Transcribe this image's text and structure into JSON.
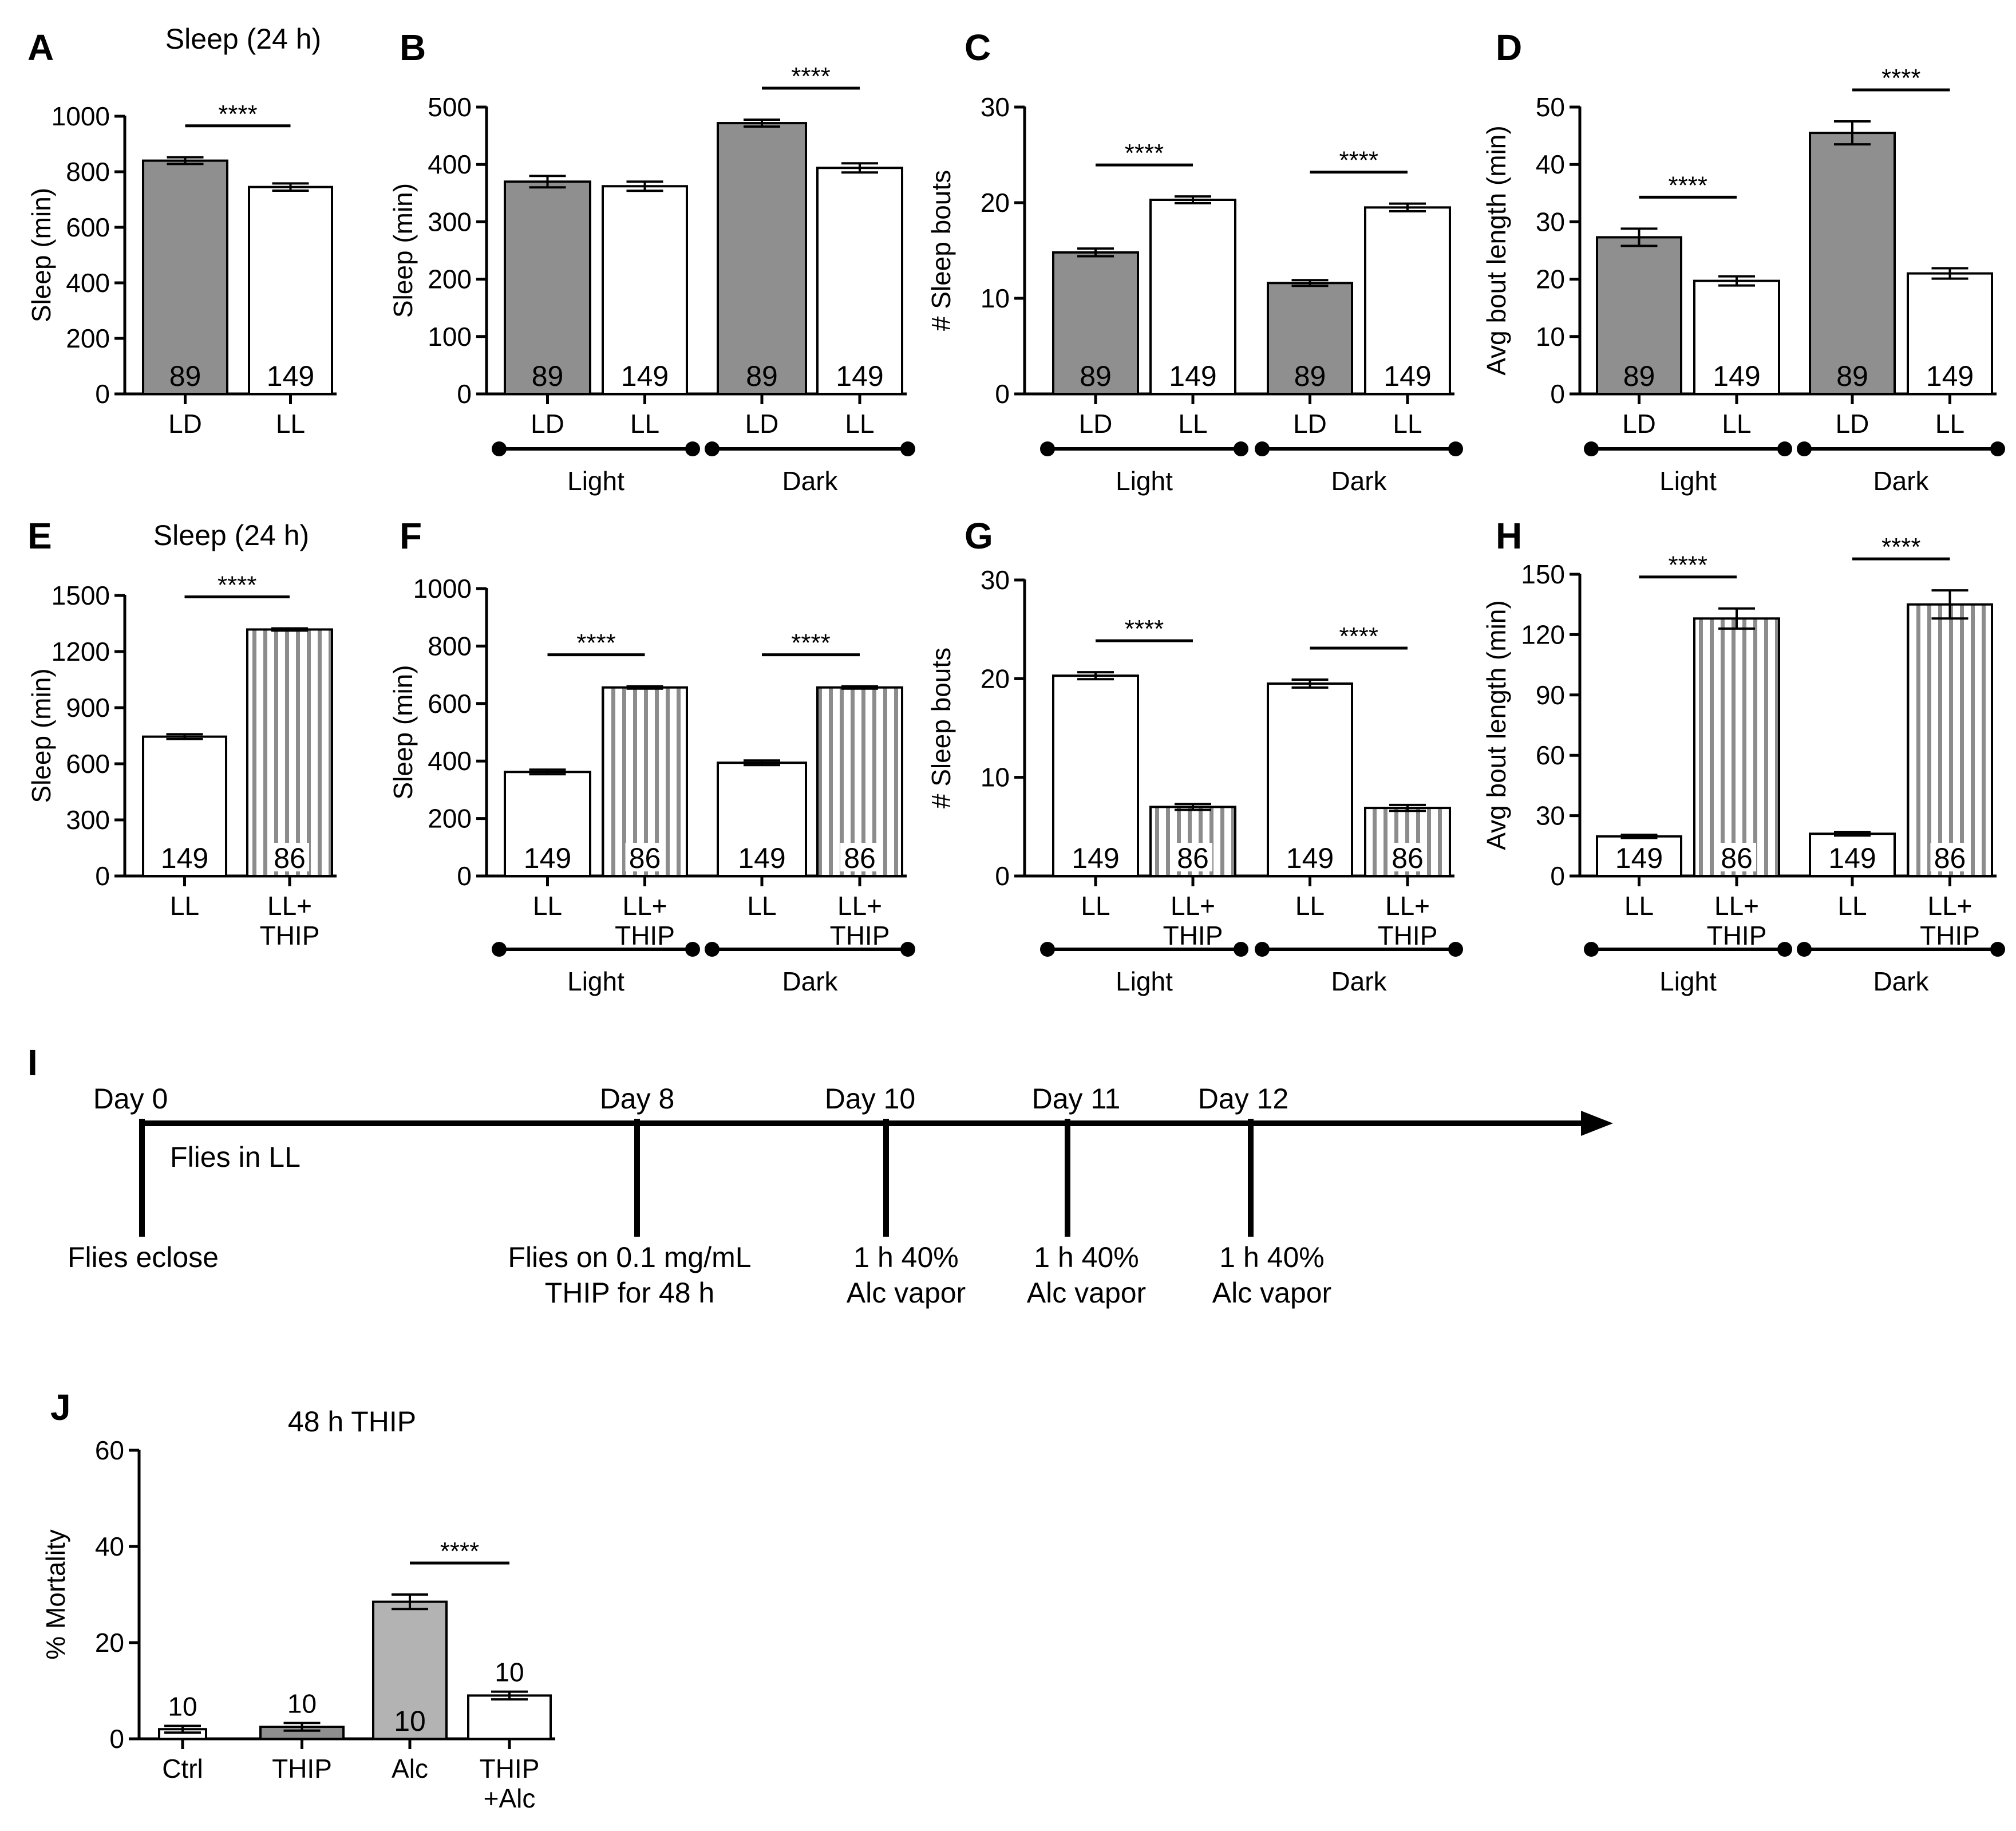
{
  "figure": {
    "colors": {
      "ld": "#8f8f8f",
      "ll": "#ffffff",
      "thip_stripe": "#8c8c8c",
      "alc": "#b3b3b3",
      "ink": "#000000",
      "alc_label": "#ffffff"
    }
  },
  "chart_data": [
    {
      "panel": "A",
      "type": "bar",
      "title": "Sleep (24 h)",
      "ylabel": "Sleep (min)",
      "ylim": [
        0,
        1000
      ],
      "yticks": [
        0,
        200,
        400,
        600,
        800,
        1000
      ],
      "grid": false,
      "categories": [
        "LD",
        "LL"
      ],
      "values": [
        840,
        745
      ],
      "errors": [
        12,
        13
      ],
      "fills": [
        "ld",
        "ll"
      ],
      "n": [
        "89",
        "149"
      ],
      "groups": [],
      "significance": [
        {
          "from": 0,
          "to": 1,
          "label": "****"
        }
      ]
    },
    {
      "panel": "B",
      "type": "bar",
      "title": "",
      "ylabel": "Sleep (min)",
      "ylim": [
        0,
        500
      ],
      "yticks": [
        0,
        100,
        200,
        300,
        400,
        500
      ],
      "grid": false,
      "categories": [
        "LD",
        "LL",
        "LD",
        "LL"
      ],
      "values": [
        370,
        362,
        472,
        394
      ],
      "errors": [
        10,
        8,
        6,
        8
      ],
      "fills": [
        "ld",
        "ll",
        "ld",
        "ll"
      ],
      "n": [
        "89",
        "149",
        "89",
        "149"
      ],
      "groups": [
        {
          "label": "Light",
          "from": 0,
          "to": 1
        },
        {
          "label": "Dark",
          "from": 2,
          "to": 3
        }
      ],
      "significance": [
        {
          "from": 2,
          "to": 3,
          "label": "****"
        }
      ]
    },
    {
      "panel": "C",
      "type": "bar",
      "title": "",
      "ylabel": "# Sleep bouts",
      "ylim": [
        0,
        30
      ],
      "yticks": [
        0,
        10,
        20,
        30
      ],
      "grid": false,
      "categories": [
        "LD",
        "LL",
        "LD",
        "LL"
      ],
      "values": [
        14.8,
        20.3,
        11.6,
        19.5
      ],
      "errors": [
        0.4,
        0.35,
        0.3,
        0.4
      ],
      "fills": [
        "ld",
        "ll",
        "ld",
        "ll"
      ],
      "n": [
        "89",
        "149",
        "89",
        "149"
      ],
      "groups": [
        {
          "label": "Light",
          "from": 0,
          "to": 1
        },
        {
          "label": "Dark",
          "from": 2,
          "to": 3
        }
      ],
      "significance": [
        {
          "from": 0,
          "to": 1,
          "label": "****"
        },
        {
          "from": 2,
          "to": 3,
          "label": "****"
        }
      ]
    },
    {
      "panel": "D",
      "type": "bar",
      "title": "",
      "ylabel": "Avg bout length (min)",
      "ylim": [
        0,
        50
      ],
      "yticks": [
        0,
        10,
        20,
        30,
        40,
        50
      ],
      "grid": false,
      "categories": [
        "LD",
        "LL",
        "LD",
        "LL"
      ],
      "values": [
        27.3,
        19.7,
        45.5,
        21
      ],
      "errors": [
        1.5,
        0.8,
        2.0,
        0.9
      ],
      "fills": [
        "ld",
        "ll",
        "ld",
        "ll"
      ],
      "n": [
        "89",
        "149",
        "89",
        "149"
      ],
      "groups": [
        {
          "label": "Light",
          "from": 0,
          "to": 1
        },
        {
          "label": "Dark",
          "from": 2,
          "to": 3
        }
      ],
      "significance": [
        {
          "from": 0,
          "to": 1,
          "label": "****"
        },
        {
          "from": 2,
          "to": 3,
          "label": "****"
        }
      ]
    },
    {
      "panel": "E",
      "type": "bar",
      "title": "Sleep (24 h)",
      "ylabel": "Sleep (min)",
      "ylim": [
        0,
        1500
      ],
      "yticks": [
        0,
        300,
        600,
        900,
        1200,
        1500
      ],
      "grid": false,
      "categories": [
        "LL",
        "LL+\nTHIP"
      ],
      "values": [
        745,
        1318
      ],
      "errors": [
        13,
        6
      ],
      "fills": [
        "ll",
        "thip"
      ],
      "n": [
        "149",
        "86"
      ],
      "groups": [],
      "significance": [
        {
          "from": 0,
          "to": 1,
          "label": "****"
        }
      ]
    },
    {
      "panel": "F",
      "type": "bar",
      "title": "",
      "ylabel": "Sleep (min)",
      "ylim": [
        0,
        1000
      ],
      "yticks": [
        0,
        200,
        400,
        600,
        800,
        1000
      ],
      "grid": false,
      "categories": [
        "LL",
        "LL+\nTHIP",
        "LL",
        "LL+\nTHIP"
      ],
      "values": [
        362,
        656,
        394,
        656
      ],
      "errors": [
        8,
        4,
        8,
        4
      ],
      "fills": [
        "ll",
        "thip",
        "ll",
        "thip"
      ],
      "n": [
        "149",
        "86",
        "149",
        "86"
      ],
      "groups": [
        {
          "label": "Light",
          "from": 0,
          "to": 1
        },
        {
          "label": "Dark",
          "from": 2,
          "to": 3
        }
      ],
      "significance": [
        {
          "from": 0,
          "to": 1,
          "label": "****"
        },
        {
          "from": 2,
          "to": 3,
          "label": "****"
        }
      ]
    },
    {
      "panel": "G",
      "type": "bar",
      "title": "",
      "ylabel": "# Sleep bouts",
      "ylim": [
        0,
        30
      ],
      "yticks": [
        0,
        10,
        20,
        30
      ],
      "grid": false,
      "categories": [
        "LL",
        "LL+\nTHIP",
        "LL",
        "LL+\nTHIP"
      ],
      "values": [
        20.3,
        7.0,
        19.5,
        6.9
      ],
      "errors": [
        0.35,
        0.3,
        0.4,
        0.3
      ],
      "fills": [
        "ll",
        "thip",
        "ll",
        "thip"
      ],
      "n": [
        "149",
        "86",
        "149",
        "86"
      ],
      "groups": [
        {
          "label": "Light",
          "from": 0,
          "to": 1
        },
        {
          "label": "Dark",
          "from": 2,
          "to": 3
        }
      ],
      "significance": [
        {
          "from": 0,
          "to": 1,
          "label": "****"
        },
        {
          "from": 2,
          "to": 3,
          "label": "****"
        }
      ]
    },
    {
      "panel": "H",
      "type": "bar",
      "title": "",
      "ylabel": "Avg bout length (min)",
      "ylim": [
        0,
        150
      ],
      "yticks": [
        0,
        30,
        60,
        90,
        120,
        150
      ],
      "grid": false,
      "categories": [
        "LL",
        "LL+\nTHIP",
        "LL",
        "LL+\nTHIP"
      ],
      "values": [
        19.7,
        128,
        21,
        135
      ],
      "errors": [
        0.8,
        5,
        0.9,
        7
      ],
      "fills": [
        "ll",
        "thip",
        "ll",
        "thip"
      ],
      "n": [
        "149",
        "86",
        "149",
        "86"
      ],
      "groups": [
        {
          "label": "Light",
          "from": 0,
          "to": 1
        },
        {
          "label": "Dark",
          "from": 2,
          "to": 3
        }
      ],
      "significance": [
        {
          "from": 0,
          "to": 1,
          "label": "****"
        },
        {
          "from": 2,
          "to": 3,
          "label": "****"
        }
      ]
    },
    {
      "panel": "J",
      "type": "bar",
      "title": "48 h THIP",
      "ylabel": "% Mortality",
      "ylim": [
        0,
        60
      ],
      "yticks": [
        0,
        20,
        40,
        60
      ],
      "grid": false,
      "categories": [
        "Ctrl",
        "THIP",
        "Alc",
        "THIP\n+Alc"
      ],
      "values": [
        2,
        2.5,
        28.5,
        9
      ],
      "errors": [
        0.7,
        0.8,
        1.5,
        0.8
      ],
      "fills": [
        "ll",
        "ld",
        "alc",
        "ll"
      ],
      "n": [
        "10",
        "10",
        "10",
        "10"
      ],
      "n_position": [
        "above",
        "above",
        "inside",
        "above"
      ],
      "groups": [],
      "significance": [
        {
          "from": 2,
          "to": 3,
          "label": "****"
        }
      ]
    }
  ],
  "timeline": {
    "panel": "I",
    "events": [
      {
        "day": 0,
        "top": "Day 0",
        "bottom": "Flies eclose"
      },
      {
        "day": 8,
        "top": "Day 8",
        "bottom": "Flies on 0.1 mg/mL\nTHIP for 48 h"
      },
      {
        "day": 10,
        "top": "Day 10",
        "bottom": "1 h 40%\nAlc vapor"
      },
      {
        "day": 11,
        "top": "Day 11",
        "bottom": "1 h 40%\nAlc vapor"
      },
      {
        "day": 12,
        "top": "Day 12",
        "bottom": "1 h 40%\nAlc vapor"
      }
    ],
    "span_label": "Flies in LL"
  }
}
